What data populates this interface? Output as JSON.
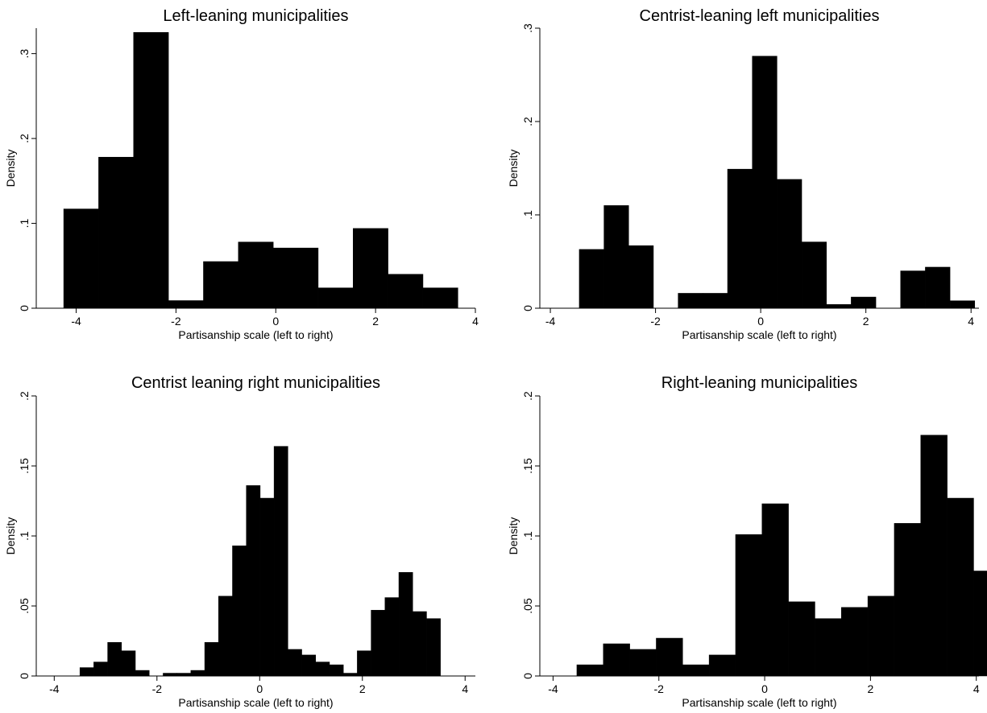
{
  "chart_data": [
    {
      "type": "bar",
      "title": "Left-leaning municipalities",
      "xlabel": "Partisanship scale (left to right)",
      "ylabel": "Density",
      "xlim": [
        -4.8,
        4.0
      ],
      "ylim": [
        0,
        0.33
      ],
      "xticks": [
        -4,
        -2,
        0,
        2,
        4
      ],
      "xtick_labels": [
        "-4",
        "-2",
        "0",
        "2",
        "4"
      ],
      "yticks": [
        0,
        0.1,
        0.2,
        0.3
      ],
      "ytick_labels": [
        "0",
        ".1",
        ".2",
        ".3"
      ],
      "bins": [
        {
          "x0": -4.25,
          "x1": -3.55,
          "y": 0.117
        },
        {
          "x0": -3.55,
          "x1": -2.85,
          "y": 0.178
        },
        {
          "x0": -2.85,
          "x1": -2.15,
          "y": 0.325
        },
        {
          "x0": -2.15,
          "x1": -1.45,
          "y": 0.009
        },
        {
          "x0": -1.45,
          "x1": -0.75,
          "y": 0.055
        },
        {
          "x0": -0.75,
          "x1": -0.05,
          "y": 0.078
        },
        {
          "x0": -0.05,
          "x1": 0.85,
          "y": 0.071
        },
        {
          "x0": 0.85,
          "x1": 1.55,
          "y": 0.024
        },
        {
          "x0": 1.55,
          "x1": 2.25,
          "y": 0.094
        },
        {
          "x0": 2.25,
          "x1": 2.95,
          "y": 0.04
        },
        {
          "x0": 2.95,
          "x1": 3.65,
          "y": 0.024
        }
      ]
    },
    {
      "type": "bar",
      "title": "Centrist-leaning left municipalities",
      "xlabel": "Partisanship scale (left to right)",
      "ylabel": "Density",
      "xlim": [
        -4.2,
        4.15
      ],
      "ylim": [
        0,
        0.3
      ],
      "xticks": [
        -4,
        -2,
        0,
        2,
        4
      ],
      "xtick_labels": [
        "-4",
        "-2",
        "0",
        "2",
        "4"
      ],
      "yticks": [
        0,
        0.1,
        0.2,
        0.3
      ],
      "ytick_labels": [
        "0",
        ".1",
        ".2",
        ".3"
      ],
      "bins": [
        {
          "x0": -3.45,
          "x1": -2.98,
          "y": 0.063
        },
        {
          "x0": -2.98,
          "x1": -2.51,
          "y": 0.11
        },
        {
          "x0": -2.51,
          "x1": -2.04,
          "y": 0.067
        },
        {
          "x0": -1.57,
          "x1": -1.1,
          "y": 0.016
        },
        {
          "x0": -1.1,
          "x1": -0.63,
          "y": 0.016
        },
        {
          "x0": -0.63,
          "x1": -0.16,
          "y": 0.149
        },
        {
          "x0": -0.16,
          "x1": 0.31,
          "y": 0.27
        },
        {
          "x0": 0.31,
          "x1": 0.78,
          "y": 0.138
        },
        {
          "x0": 0.78,
          "x1": 1.25,
          "y": 0.071
        },
        {
          "x0": 1.25,
          "x1": 1.72,
          "y": 0.004
        },
        {
          "x0": 1.72,
          "x1": 2.19,
          "y": 0.012
        },
        {
          "x0": 2.66,
          "x1": 3.13,
          "y": 0.04
        },
        {
          "x0": 3.13,
          "x1": 3.6,
          "y": 0.044
        },
        {
          "x0": 3.6,
          "x1": 4.07,
          "y": 0.008
        }
      ]
    },
    {
      "type": "bar",
      "title": "Centrist leaning right municipalities",
      "xlabel": "Partisanship scale (left to right)",
      "ylabel": "Density",
      "xlim": [
        -4.35,
        4.2
      ],
      "ylim": [
        0,
        0.2
      ],
      "xticks": [
        -4,
        -2,
        0,
        2,
        4
      ],
      "xtick_labels": [
        "-4",
        "-2",
        "0",
        "2",
        "4"
      ],
      "yticks": [
        0,
        0.05,
        0.1,
        0.15,
        0.2
      ],
      "ytick_labels": [
        "0",
        ".05",
        ".1",
        ".15",
        ".2"
      ],
      "bins": [
        {
          "x0": -3.5,
          "x1": -3.23,
          "y": 0.006
        },
        {
          "x0": -3.23,
          "x1": -2.96,
          "y": 0.01
        },
        {
          "x0": -2.96,
          "x1": -2.69,
          "y": 0.024
        },
        {
          "x0": -2.69,
          "x1": -2.42,
          "y": 0.018
        },
        {
          "x0": -2.42,
          "x1": -2.15,
          "y": 0.004
        },
        {
          "x0": -1.88,
          "x1": -1.61,
          "y": 0.002
        },
        {
          "x0": -1.61,
          "x1": -1.34,
          "y": 0.002
        },
        {
          "x0": -1.34,
          "x1": -1.07,
          "y": 0.004
        },
        {
          "x0": -1.07,
          "x1": -0.8,
          "y": 0.024
        },
        {
          "x0": -0.8,
          "x1": -0.53,
          "y": 0.057
        },
        {
          "x0": -0.53,
          "x1": -0.26,
          "y": 0.093
        },
        {
          "x0": -0.26,
          "x1": 0.01,
          "y": 0.136
        },
        {
          "x0": 0.01,
          "x1": 0.28,
          "y": 0.127
        },
        {
          "x0": 0.28,
          "x1": 0.55,
          "y": 0.164
        },
        {
          "x0": 0.55,
          "x1": 0.82,
          "y": 0.019
        },
        {
          "x0": 0.82,
          "x1": 1.09,
          "y": 0.015
        },
        {
          "x0": 1.09,
          "x1": 1.36,
          "y": 0.01
        },
        {
          "x0": 1.36,
          "x1": 1.63,
          "y": 0.008
        },
        {
          "x0": 1.63,
          "x1": 1.9,
          "y": 0.002
        },
        {
          "x0": 1.9,
          "x1": 2.17,
          "y": 0.018
        },
        {
          "x0": 2.17,
          "x1": 2.44,
          "y": 0.047
        },
        {
          "x0": 2.44,
          "x1": 2.71,
          "y": 0.056
        },
        {
          "x0": 2.71,
          "x1": 2.98,
          "y": 0.074
        },
        {
          "x0": 2.98,
          "x1": 3.25,
          "y": 0.046
        },
        {
          "x0": 3.25,
          "x1": 3.52,
          "y": 0.041
        }
      ]
    },
    {
      "type": "bar",
      "title": "Right-leaning municipalities",
      "xlabel": "Partisanship scale (left to right)",
      "ylabel": "Density",
      "xlim": [
        -4.25,
        4.05
      ],
      "ylim": [
        0,
        0.2
      ],
      "xticks": [
        -4,
        -2,
        0,
        2,
        4
      ],
      "xtick_labels": [
        "-4",
        "-2",
        "0",
        "2",
        "4"
      ],
      "yticks": [
        0,
        0.05,
        0.1,
        0.15,
        0.2
      ],
      "ytick_labels": [
        "0",
        ".05",
        ".1",
        ".15",
        ".2"
      ],
      "bins": [
        {
          "x0": -3.55,
          "x1": -3.05,
          "y": 0.008
        },
        {
          "x0": -3.05,
          "x1": -2.55,
          "y": 0.023
        },
        {
          "x0": -2.55,
          "x1": -2.05,
          "y": 0.019
        },
        {
          "x0": -2.05,
          "x1": -1.55,
          "y": 0.027
        },
        {
          "x0": -1.55,
          "x1": -1.05,
          "y": 0.008
        },
        {
          "x0": -1.05,
          "x1": -0.55,
          "y": 0.015
        },
        {
          "x0": -0.55,
          "x1": -0.05,
          "y": 0.101
        },
        {
          "x0": -0.05,
          "x1": 0.45,
          "y": 0.123
        },
        {
          "x0": 0.45,
          "x1": 0.95,
          "y": 0.053
        },
        {
          "x0": 0.95,
          "x1": 1.45,
          "y": 0.041
        },
        {
          "x0": 1.45,
          "x1": 1.95,
          "y": 0.049
        },
        {
          "x0": 1.95,
          "x1": 2.45,
          "y": 0.057
        },
        {
          "x0": 2.45,
          "x1": 2.95,
          "y": 0.109
        },
        {
          "x0": 2.95,
          "x1": 3.45,
          "y": 0.172
        },
        {
          "x0": 3.45,
          "x1": 3.95,
          "y": 0.127
        },
        {
          "x0": 3.95,
          "x1": 4.45,
          "y": 0.075
        }
      ]
    }
  ]
}
